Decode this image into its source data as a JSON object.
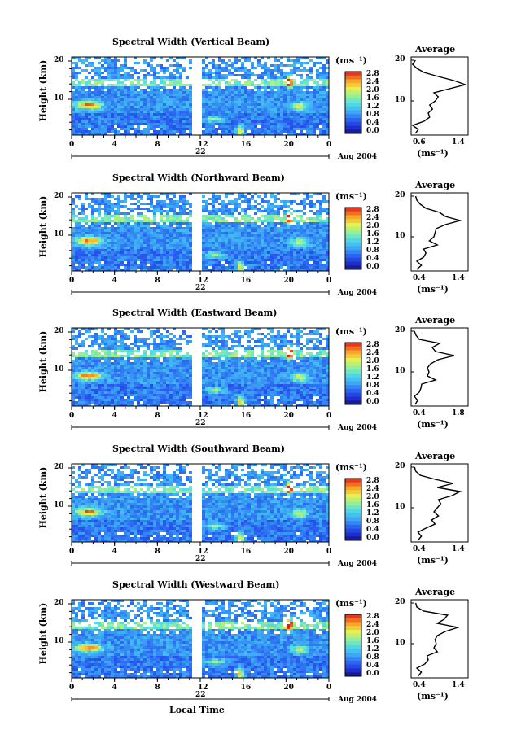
{
  "figure": {
    "xlabel": "Local Time",
    "date_label": "Aug 2004",
    "day_label": "22",
    "ylabel": "Height (km)",
    "unit_label": "(ms⁻¹)",
    "average_title": "Average",
    "average_xlabel": "(ms⁻¹)",
    "colorbar_ticks": [
      "2.8",
      "2.4",
      "2.0",
      "1.6",
      "1.2",
      "0.8",
      "0.4",
      "0.0"
    ]
  },
  "chart_data": [
    {
      "type": "heatmap",
      "title": "Spectral Width (Vertical Beam)",
      "x_ticks": [
        "0",
        "4",
        "8",
        "12",
        "16",
        "20",
        "0"
      ],
      "y_ticks": [
        "20",
        "10"
      ],
      "xlim": [
        0,
        24
      ],
      "ylim": [
        2,
        20
      ],
      "gap": [
        11.4,
        12.0
      ],
      "colorbar": {
        "min": 0.0,
        "max": 3.0,
        "ticks": [
          2.8,
          2.4,
          2.0,
          1.6,
          1.2,
          0.8,
          0.4,
          0.0
        ]
      },
      "average_profile": {
        "type": "line",
        "title": "Average",
        "xlim": [
          0.6,
          1.4
        ],
        "x_ticks": [
          "0.6",
          "1.4"
        ],
        "y_ticks": [
          "20",
          "10"
        ],
        "points": [
          [
            0.66,
            2
          ],
          [
            0.7,
            3
          ],
          [
            0.62,
            4
          ],
          [
            0.78,
            5
          ],
          [
            0.86,
            6
          ],
          [
            0.84,
            7
          ],
          [
            0.9,
            8
          ],
          [
            0.86,
            9
          ],
          [
            0.94,
            10
          ],
          [
            0.98,
            11
          ],
          [
            0.92,
            12
          ],
          [
            1.14,
            13
          ],
          [
            1.36,
            14
          ],
          [
            1.2,
            15
          ],
          [
            0.98,
            16
          ],
          [
            0.78,
            17
          ],
          [
            0.68,
            18
          ],
          [
            0.62,
            19
          ],
          [
            0.66,
            20
          ]
        ]
      }
    },
    {
      "type": "heatmap",
      "title": "Spectral Width (Northward Beam)",
      "x_ticks": [
        "0",
        "4",
        "8",
        "12",
        "16",
        "20",
        "0"
      ],
      "y_ticks": [
        "20",
        "10"
      ],
      "xlim": [
        0,
        24
      ],
      "ylim": [
        2,
        20
      ],
      "gap": [
        11.4,
        12.0
      ],
      "colorbar": {
        "min": 0.0,
        "max": 3.0,
        "ticks": [
          2.8,
          2.4,
          2.0,
          1.6,
          1.2,
          0.8,
          0.4,
          0.0
        ]
      },
      "average_profile": {
        "type": "line",
        "title": "Average",
        "xlim": [
          0.4,
          1.4
        ],
        "x_ticks": [
          "0.4",
          "1.4"
        ],
        "y_ticks": [
          "20",
          "10"
        ],
        "points": [
          [
            0.5,
            2
          ],
          [
            0.58,
            3
          ],
          [
            0.5,
            4
          ],
          [
            0.62,
            5
          ],
          [
            0.66,
            6
          ],
          [
            0.62,
            7
          ],
          [
            0.86,
            8
          ],
          [
            0.72,
            9
          ],
          [
            0.8,
            10
          ],
          [
            0.82,
            11
          ],
          [
            0.84,
            12
          ],
          [
            1.0,
            13
          ],
          [
            1.26,
            14
          ],
          [
            1.0,
            15
          ],
          [
            0.9,
            16
          ],
          [
            0.66,
            17
          ],
          [
            0.56,
            18
          ],
          [
            0.5,
            19
          ],
          [
            0.48,
            20
          ]
        ]
      }
    },
    {
      "type": "heatmap",
      "title": "Spectral Width (Eastward Beam)",
      "x_ticks": [
        "0",
        "4",
        "8",
        "12",
        "16",
        "20",
        "0"
      ],
      "y_ticks": [
        "20",
        "10"
      ],
      "xlim": [
        0,
        24
      ],
      "ylim": [
        2,
        20
      ],
      "gap": [
        11.4,
        12.0
      ],
      "colorbar": {
        "min": 0.0,
        "max": 3.0,
        "ticks": [
          2.8,
          2.4,
          2.0,
          1.6,
          1.2,
          0.8,
          0.4,
          0.0
        ]
      },
      "average_profile": {
        "type": "line",
        "title": "Average",
        "xlim": [
          0.4,
          1.8
        ],
        "x_ticks": [
          "0.4",
          "1.8"
        ],
        "y_ticks": [
          "20",
          "10"
        ],
        "points": [
          [
            0.5,
            2
          ],
          [
            0.56,
            3
          ],
          [
            0.48,
            4
          ],
          [
            0.6,
            5
          ],
          [
            0.64,
            6
          ],
          [
            0.66,
            7
          ],
          [
            1.0,
            8
          ],
          [
            0.8,
            9
          ],
          [
            0.84,
            10
          ],
          [
            0.8,
            11
          ],
          [
            0.88,
            12
          ],
          [
            1.06,
            13
          ],
          [
            1.46,
            14
          ],
          [
            1.0,
            15
          ],
          [
            0.92,
            16
          ],
          [
            1.1,
            17
          ],
          [
            0.6,
            18
          ],
          [
            0.52,
            19
          ],
          [
            0.48,
            20
          ]
        ]
      }
    },
    {
      "type": "heatmap",
      "title": "Spectral Width (Southward Beam)",
      "x_ticks": [
        "0",
        "4",
        "8",
        "12",
        "16",
        "20",
        "0"
      ],
      "y_ticks": [
        "20",
        "10"
      ],
      "xlim": [
        0,
        24
      ],
      "ylim": [
        2,
        20
      ],
      "gap": [
        11.4,
        12.0
      ],
      "colorbar": {
        "min": 0.0,
        "max": 3.0,
        "ticks": [
          2.8,
          2.4,
          2.0,
          1.6,
          1.2,
          0.8,
          0.4,
          0.0
        ]
      },
      "average_profile": {
        "type": "line",
        "title": "Average",
        "xlim": [
          0.4,
          1.4
        ],
        "x_ticks": [
          "0.4",
          "1.4"
        ],
        "y_ticks": [
          "20",
          "10"
        ],
        "points": [
          [
            0.52,
            2
          ],
          [
            0.58,
            3
          ],
          [
            0.52,
            4
          ],
          [
            0.66,
            5
          ],
          [
            0.82,
            6
          ],
          [
            0.76,
            7
          ],
          [
            0.88,
            8
          ],
          [
            0.8,
            9
          ],
          [
            0.86,
            10
          ],
          [
            0.92,
            11
          ],
          [
            0.88,
            12
          ],
          [
            1.12,
            13
          ],
          [
            1.26,
            14
          ],
          [
            0.86,
            15
          ],
          [
            1.14,
            16
          ],
          [
            0.82,
            17
          ],
          [
            0.56,
            18
          ],
          [
            0.48,
            19
          ],
          [
            0.46,
            20
          ]
        ]
      }
    },
    {
      "type": "heatmap",
      "title": "Spectral Width (Westward Beam)",
      "x_ticks": [
        "0",
        "4",
        "8",
        "12",
        "16",
        "20",
        "0"
      ],
      "y_ticks": [
        "20",
        "10"
      ],
      "xlim": [
        0,
        24
      ],
      "ylim": [
        2,
        20
      ],
      "gap": [
        11.4,
        12.0
      ],
      "colorbar": {
        "min": 0.0,
        "max": 3.0,
        "ticks": [
          2.8,
          2.4,
          2.0,
          1.6,
          1.2,
          0.8,
          0.4,
          0.0
        ]
      },
      "average_profile": {
        "type": "line",
        "title": "Average",
        "xlim": [
          0.4,
          1.4
        ],
        "x_ticks": [
          "0.4",
          "1.4"
        ],
        "y_ticks": [
          "20",
          "10"
        ],
        "points": [
          [
            0.52,
            2
          ],
          [
            0.58,
            3
          ],
          [
            0.5,
            4
          ],
          [
            0.64,
            5
          ],
          [
            0.7,
            6
          ],
          [
            0.68,
            7
          ],
          [
            0.86,
            8
          ],
          [
            0.8,
            9
          ],
          [
            0.84,
            10
          ],
          [
            0.82,
            11
          ],
          [
            0.86,
            12
          ],
          [
            1.0,
            13
          ],
          [
            1.22,
            14
          ],
          [
            0.86,
            15
          ],
          [
            0.98,
            16
          ],
          [
            1.04,
            17
          ],
          [
            0.62,
            18
          ],
          [
            0.5,
            19
          ],
          [
            0.48,
            20
          ]
        ]
      }
    }
  ]
}
